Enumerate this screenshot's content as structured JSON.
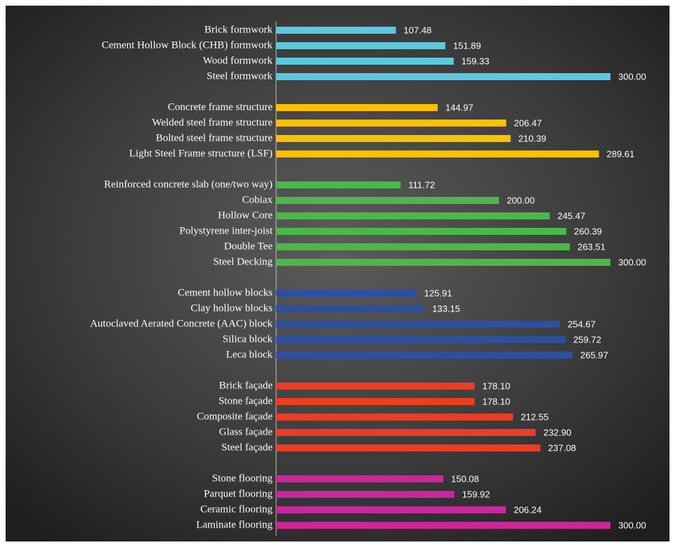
{
  "chart_data": {
    "type": "bar",
    "orientation": "horizontal",
    "xlim": [
      0,
      300
    ],
    "groups": [
      {
        "color": "#5bc8de",
        "categories": [
          "Brick formwork",
          "Cement Hollow Block (CHB) formwork",
          "Wood formwork",
          "Steel formwork"
        ],
        "values": [
          107.48,
          151.89,
          159.33,
          300
        ],
        "value_labels": [
          "107.48",
          "151.89",
          "159.33",
          "300.00"
        ]
      },
      {
        "color": "#ffc000",
        "categories": [
          "Concrete frame structure",
          "Welded steel frame structure",
          "Bolted steel frame structure",
          "Light Steel Frame structure (LSF)"
        ],
        "values": [
          144.97,
          206.47,
          210.39,
          289.61
        ],
        "value_labels": [
          "144.97",
          "206.47",
          "210.39",
          "289.61"
        ]
      },
      {
        "color": "#4cb848",
        "categories": [
          "Reinforced concrete slab (one/two way)",
          "Cobiax",
          "Hollow Core",
          "Polystyrene inter-joist",
          "Double Tee",
          "Steel Decking"
        ],
        "values": [
          111.72,
          200,
          245.47,
          260.39,
          263.51,
          300
        ],
        "value_labels": [
          "111.72",
          "200.00",
          "245.47",
          "260.39",
          "263.51",
          "300.00"
        ]
      },
      {
        "color": "#2e4fa0",
        "categories": [
          "Cement hollow blocks",
          "Clay hollow blocks",
          "Autoclaved Aerated Concrete (AAC) block",
          "Silica block",
          "Leca block"
        ],
        "values": [
          125.91,
          133.15,
          254.67,
          259.72,
          265.97
        ],
        "value_labels": [
          "125.91",
          "133.15",
          "254.67",
          "259.72",
          "265.97"
        ]
      },
      {
        "color": "#ee3c23",
        "categories": [
          "Brick façade",
          "Stone façade",
          "Composite façade",
          "Glass façade",
          "Steel façade"
        ],
        "values": [
          178.1,
          178.1,
          212.55,
          232.9,
          237.08
        ],
        "value_labels": [
          "178.10",
          "178.10",
          "212.55",
          "232.90",
          "237.08"
        ]
      },
      {
        "color": "#c8289b",
        "categories": [
          "Stone flooring",
          "Parquet flooring",
          "Ceramic flooring",
          "Laminate flooring"
        ],
        "values": [
          150.08,
          159.92,
          206.24,
          300
        ],
        "value_labels": [
          "150.08",
          "159.92",
          "206.24",
          "300.00"
        ]
      }
    ]
  }
}
